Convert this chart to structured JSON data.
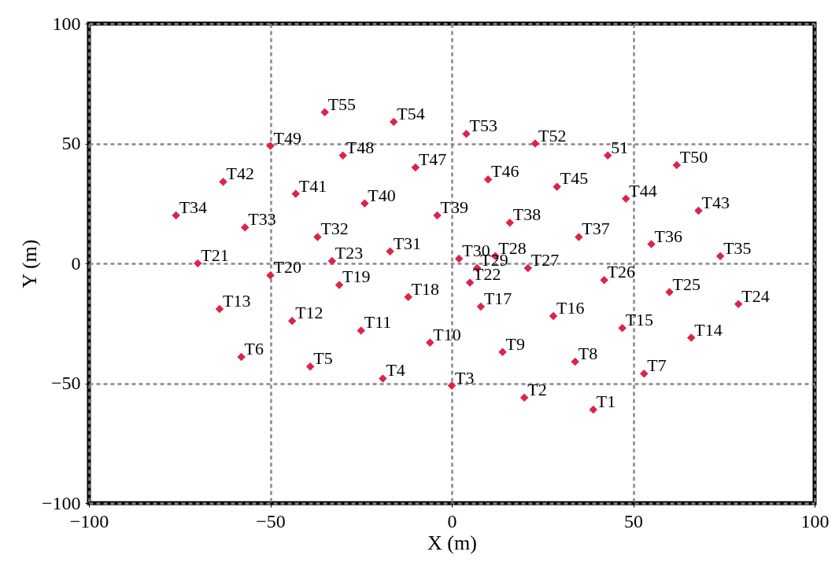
{
  "chart_data": {
    "type": "scatter",
    "xlabel": "X (m)",
    "ylabel": "Y (m)",
    "xlim": [
      -100,
      100
    ],
    "ylim": [
      -100,
      100
    ],
    "xticks": [
      -100,
      -50,
      0,
      50,
      100
    ],
    "yticks": [
      -100,
      -50,
      0,
      50,
      100
    ],
    "grid": true,
    "marker": "diamond",
    "color": "#dc2348",
    "x": [
      39,
      20,
      0,
      -19,
      -39,
      -58,
      53,
      34,
      14,
      -6,
      -25,
      -44,
      -64,
      66,
      47,
      28,
      8,
      -12,
      -31,
      -50,
      -70,
      5,
      -33,
      79,
      60,
      42,
      21,
      12,
      7,
      2,
      -17,
      -37,
      -57,
      -76,
      74,
      55,
      35,
      16,
      -4,
      -24,
      -43,
      -63,
      68,
      48,
      29,
      10,
      -10,
      -30,
      -50,
      62,
      43,
      23,
      4,
      -16,
      -35
    ],
    "values": [
      -61,
      -56,
      -51,
      -48,
      -43,
      -39,
      -46,
      -41,
      -37,
      -33,
      -28,
      -24,
      -19,
      -31,
      -27,
      -22,
      -18,
      -14,
      -9,
      -5,
      0,
      -8,
      1,
      -17,
      -12,
      -7,
      -2,
      3,
      -2,
      2,
      5,
      11,
      15,
      20,
      3,
      8,
      11,
      17,
      20,
      25,
      29,
      34,
      22,
      27,
      32,
      35,
      40,
      45,
      49,
      41,
      45,
      50,
      54,
      59,
      63
    ],
    "annotations": [
      {
        "text": "T1",
        "x": 39,
        "y": -61
      },
      {
        "text": "T2",
        "x": 20,
        "y": -56
      },
      {
        "text": "T3",
        "x": 0,
        "y": -51
      },
      {
        "text": "T4",
        "x": -19,
        "y": -48
      },
      {
        "text": "T5",
        "x": -39,
        "y": -43
      },
      {
        "text": "T6",
        "x": -58,
        "y": -39
      },
      {
        "text": "T7",
        "x": 53,
        "y": -46
      },
      {
        "text": "T8",
        "x": 34,
        "y": -41
      },
      {
        "text": "T9",
        "x": 14,
        "y": -37
      },
      {
        "text": "T10",
        "x": -6,
        "y": -33
      },
      {
        "text": "T11",
        "x": -25,
        "y": -28
      },
      {
        "text": "T12",
        "x": -44,
        "y": -24
      },
      {
        "text": "T13",
        "x": -64,
        "y": -19
      },
      {
        "text": "T14",
        "x": 66,
        "y": -31
      },
      {
        "text": "T15",
        "x": 47,
        "y": -27
      },
      {
        "text": "T16",
        "x": 28,
        "y": -22
      },
      {
        "text": "T17",
        "x": 8,
        "y": -18
      },
      {
        "text": "T18",
        "x": -12,
        "y": -14
      },
      {
        "text": "T19",
        "x": -31,
        "y": -9
      },
      {
        "text": "T20",
        "x": -50,
        "y": -5
      },
      {
        "text": "T21",
        "x": -70,
        "y": 0
      },
      {
        "text": "T22",
        "x": 5,
        "y": -8
      },
      {
        "text": "T23",
        "x": -33,
        "y": 1
      },
      {
        "text": "T24",
        "x": 79,
        "y": -17
      },
      {
        "text": "T25",
        "x": 60,
        "y": -12
      },
      {
        "text": "T26",
        "x": 42,
        "y": -7
      },
      {
        "text": "T27",
        "x": 21,
        "y": -2
      },
      {
        "text": "T28",
        "x": 12,
        "y": 3
      },
      {
        "text": "T29",
        "x": 7,
        "y": -2
      },
      {
        "text": "T30",
        "x": 2,
        "y": 2
      },
      {
        "text": "T31",
        "x": -17,
        "y": 5
      },
      {
        "text": "T32",
        "x": -37,
        "y": 11
      },
      {
        "text": "T33",
        "x": -57,
        "y": 15
      },
      {
        "text": "T34",
        "x": -76,
        "y": 20
      },
      {
        "text": "T35",
        "x": 74,
        "y": 3
      },
      {
        "text": "T36",
        "x": 55,
        "y": 8
      },
      {
        "text": "T37",
        "x": 35,
        "y": 11
      },
      {
        "text": "T38",
        "x": 16,
        "y": 17
      },
      {
        "text": "T39",
        "x": -4,
        "y": 20
      },
      {
        "text": "T40",
        "x": -24,
        "y": 25
      },
      {
        "text": "T41",
        "x": -43,
        "y": 29
      },
      {
        "text": "T42",
        "x": -63,
        "y": 34
      },
      {
        "text": "T43",
        "x": 68,
        "y": 22
      },
      {
        "text": "T44",
        "x": 48,
        "y": 27
      },
      {
        "text": "T45",
        "x": 29,
        "y": 32
      },
      {
        "text": "T46",
        "x": 10,
        "y": 35
      },
      {
        "text": "T47",
        "x": -10,
        "y": 40
      },
      {
        "text": "T48",
        "x": -30,
        "y": 45
      },
      {
        "text": "T49",
        "x": -50,
        "y": 49
      },
      {
        "text": "T50",
        "x": 62,
        "y": 41
      },
      {
        "text": "51",
        "x": 43,
        "y": 45
      },
      {
        "text": "T52",
        "x": 23,
        "y": 50
      },
      {
        "text": "T53",
        "x": 4,
        "y": 54
      },
      {
        "text": "T54",
        "x": -16,
        "y": 59
      },
      {
        "text": "T55",
        "x": -35,
        "y": 63
      }
    ]
  }
}
